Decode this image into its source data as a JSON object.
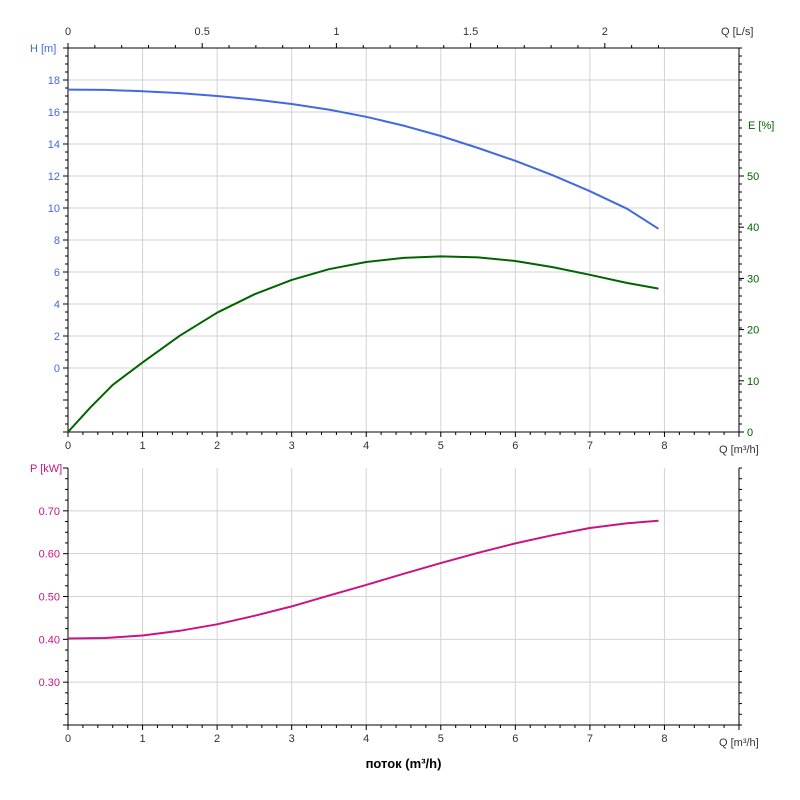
{
  "chart_data": [
    {
      "type": "line",
      "panel": "top",
      "x_label": "Q [m³/h]",
      "x_range": [
        0,
        9
      ],
      "x_ticks": [
        0,
        1,
        2,
        3,
        4,
        5,
        6,
        7,
        8
      ],
      "x_top_label": "Q [L/s]",
      "x_top_range": [
        0,
        2.5
      ],
      "x_top_ticks": [
        0,
        0.5,
        1,
        1.5,
        2
      ],
      "x_top_tick_labels": [
        "0",
        "0.5",
        "1",
        "1.5",
        "2"
      ],
      "y_left_label": "H [m]",
      "y_left_range": [
        -4,
        20
      ],
      "y_left_ticks": [
        0,
        2,
        4,
        6,
        8,
        10,
        12,
        14,
        16,
        18
      ],
      "y_right_label": "E [%]",
      "y_right_range": [
        0,
        75
      ],
      "y_right_ticks": [
        0,
        10,
        20,
        30,
        40,
        50
      ],
      "grid": true,
      "series": [
        {
          "axis": "left",
          "color": "#4169e1",
          "x": [
            0,
            0.5,
            1,
            1.5,
            2,
            2.5,
            3,
            3.5,
            4,
            4.5,
            5,
            5.5,
            6,
            6.5,
            7,
            7.5,
            7.92
          ],
          "y": [
            17.4,
            17.38,
            17.3,
            17.18,
            17.0,
            16.78,
            16.5,
            16.15,
            15.7,
            15.15,
            14.5,
            13.75,
            12.95,
            12.05,
            11.05,
            9.95,
            8.7
          ]
        },
        {
          "axis": "right",
          "color": "#006400",
          "x": [
            0,
            0.3,
            0.6,
            1,
            1.5,
            2,
            2.5,
            3,
            3.5,
            4,
            4.5,
            5,
            5.5,
            6,
            6.5,
            7,
            7.5,
            7.92
          ],
          "y": [
            0,
            4.8,
            9.2,
            13.6,
            18.8,
            23.3,
            26.9,
            29.7,
            31.8,
            33.2,
            34.0,
            34.3,
            34.1,
            33.4,
            32.2,
            30.7,
            29.1,
            28.0
          ]
        }
      ]
    },
    {
      "type": "line",
      "panel": "bottom",
      "title": "",
      "x_label": "Q [m³/h]",
      "x_axis_title": "поток (m³/h)",
      "x_range": [
        0,
        9
      ],
      "x_ticks": [
        0,
        1,
        2,
        3,
        4,
        5,
        6,
        7,
        8
      ],
      "y_left_label": "P [kW]",
      "y_left_range": [
        0.2,
        0.8
      ],
      "y_left_ticks": [
        0.3,
        0.4,
        0.5,
        0.6,
        0.7
      ],
      "y_left_tick_labels": [
        "0.30",
        "0.40",
        "0.50",
        "0.60",
        "0.70"
      ],
      "grid": true,
      "series": [
        {
          "axis": "left",
          "color": "#c71585",
          "x": [
            0,
            0.5,
            1,
            1.5,
            2,
            2.5,
            3,
            3.5,
            4,
            4.5,
            5,
            5.5,
            6,
            6.5,
            7,
            7.5,
            7.92
          ],
          "y": [
            0.402,
            0.403,
            0.409,
            0.42,
            0.435,
            0.455,
            0.477,
            0.502,
            0.527,
            0.553,
            0.578,
            0.602,
            0.624,
            0.643,
            0.66,
            0.671,
            0.677
          ]
        }
      ]
    }
  ]
}
